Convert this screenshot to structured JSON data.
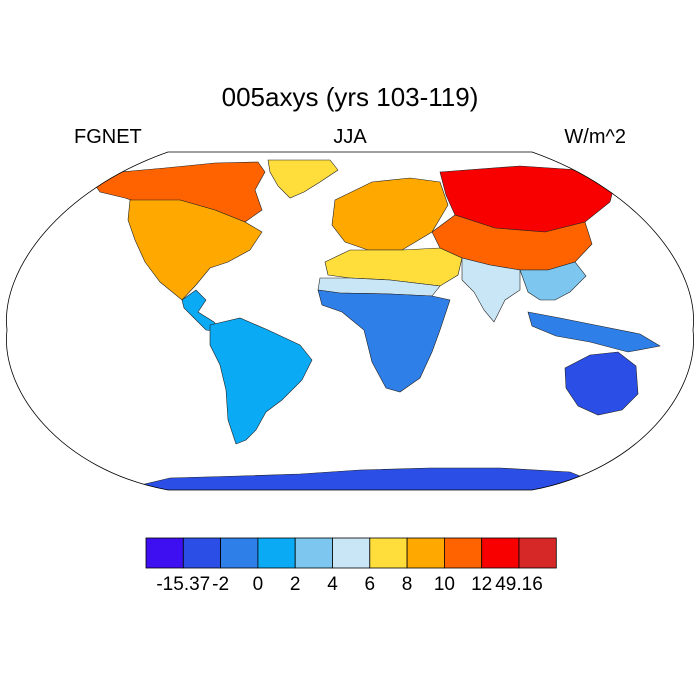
{
  "title": "005axys (yrs 103-119)",
  "left_label": "FGNET",
  "center_label": "JJA",
  "right_label": "W/m^2",
  "projection": "robinson",
  "colorbar": {
    "colors": [
      "#3e0ff1",
      "#2b4fe6",
      "#2f7fe9",
      "#0aaaf4",
      "#7cc6ef",
      "#c9e6f6",
      "#ffde3c",
      "#ffa800",
      "#ff6300",
      "#f80000",
      "#d72828"
    ],
    "tick_labels": [
      "-15.37",
      "-2",
      "0",
      "2",
      "4",
      "6",
      "8",
      "10",
      "12",
      "49.16"
    ],
    "min": -15.37,
    "max": 49.16,
    "levels": [
      -4,
      -2,
      0,
      2,
      4,
      6,
      8,
      10,
      12,
      14
    ]
  },
  "regions": [
    {
      "name": "north-america-arctic",
      "level": 10
    },
    {
      "name": "north-america-central",
      "level": 8
    },
    {
      "name": "greenland",
      "level": 6
    },
    {
      "name": "south-america",
      "level": 0
    },
    {
      "name": "europe",
      "level": 8
    },
    {
      "name": "siberia",
      "level": 12
    },
    {
      "name": "central-asia",
      "level": 10
    },
    {
      "name": "sahara-arabia",
      "level": 6
    },
    {
      "name": "sahel",
      "level": 4
    },
    {
      "name": "africa-south",
      "level": -2
    },
    {
      "name": "india-south-asia",
      "level": 4
    },
    {
      "name": "southeast-asia",
      "level": 2
    },
    {
      "name": "australia",
      "level": -4
    },
    {
      "name": "antarctica",
      "level": -4
    }
  ]
}
